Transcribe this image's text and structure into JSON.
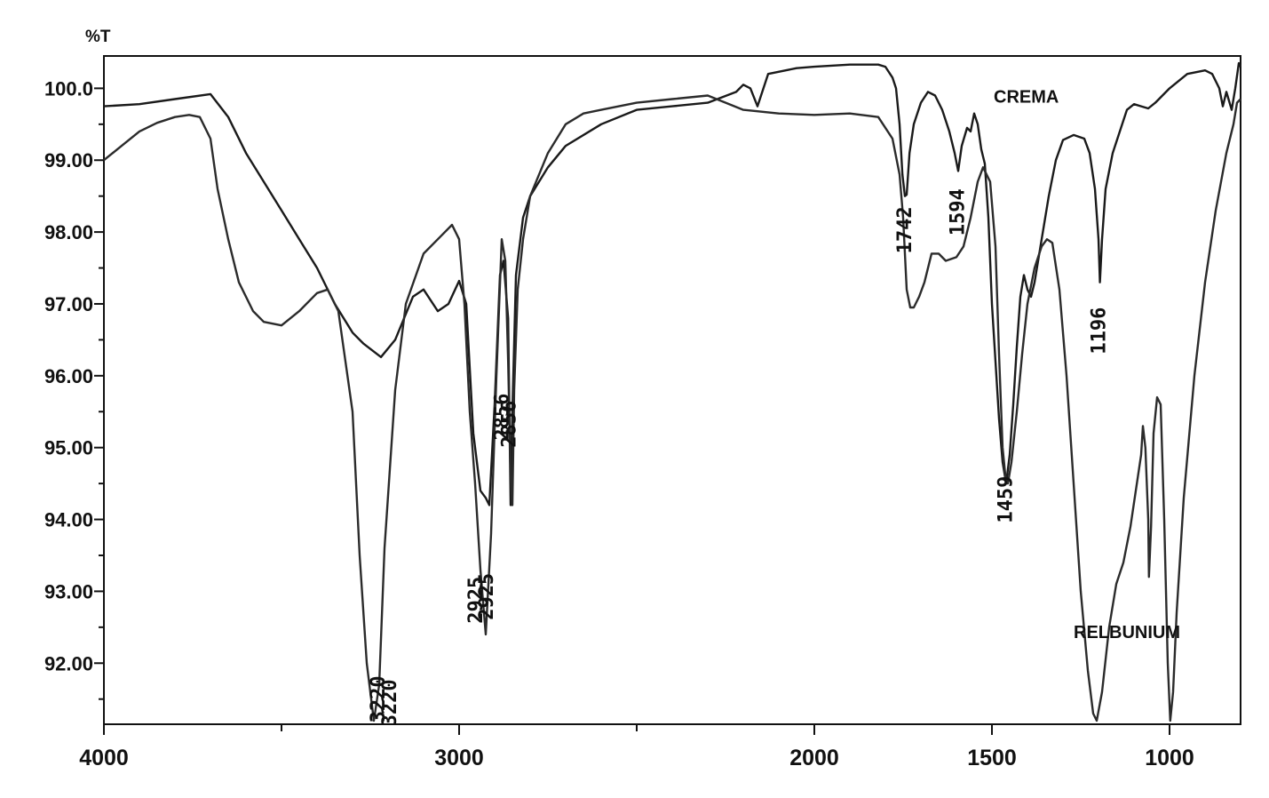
{
  "chart_data": {
    "type": "line",
    "title": "",
    "ylabel": "%T",
    "xlabel": "",
    "xlim": [
      4000,
      800
    ],
    "ylim": [
      91.15,
      100.45
    ],
    "x_ticks": [
      {
        "value": 4000,
        "label": "4000"
      },
      {
        "value": 3000,
        "label": "3000"
      },
      {
        "value": 2000,
        "label": "2000"
      },
      {
        "value": 1500,
        "label": "1500"
      },
      {
        "value": 1000,
        "label": "1000"
      }
    ],
    "x_minor_ticks": [
      3500,
      2500
    ],
    "y_ticks": [
      {
        "value": 100,
        "label": "100.0"
      },
      {
        "value": 99,
        "label": "99.00"
      },
      {
        "value": 98,
        "label": "98.00"
      },
      {
        "value": 97,
        "label": "97.00"
      },
      {
        "value": 96,
        "label": "96.00"
      },
      {
        "value": 95,
        "label": "95.00"
      },
      {
        "value": 94,
        "label": "94.00"
      },
      {
        "value": 93,
        "label": "93.00"
      },
      {
        "value": 92,
        "label": "92.00"
      }
    ],
    "grid": false,
    "series": [
      {
        "name": "CREMA",
        "color": "#1a1a1a",
        "label_at": {
          "x": 1495,
          "y": 99.8
        },
        "points": [
          [
            4000,
            99.75
          ],
          [
            3900,
            99.78
          ],
          [
            3800,
            99.85
          ],
          [
            3700,
            99.92
          ],
          [
            3650,
            99.6
          ],
          [
            3600,
            99.1
          ],
          [
            3550,
            98.7
          ],
          [
            3500,
            98.3
          ],
          [
            3450,
            97.9
          ],
          [
            3400,
            97.5
          ],
          [
            3350,
            97.0
          ],
          [
            3300,
            96.6
          ],
          [
            3270,
            96.45
          ],
          [
            3220,
            96.26
          ],
          [
            3180,
            96.5
          ],
          [
            3130,
            97.1
          ],
          [
            3100,
            97.2
          ],
          [
            3060,
            96.9
          ],
          [
            3030,
            97.0
          ],
          [
            3000,
            97.32
          ],
          [
            2980,
            97.0
          ],
          [
            2960,
            95.2
          ],
          [
            2940,
            94.4
          ],
          [
            2925,
            94.3
          ],
          [
            2915,
            94.2
          ],
          [
            2900,
            95.6
          ],
          [
            2885,
            97.4
          ],
          [
            2875,
            97.6
          ],
          [
            2862,
            96.8
          ],
          [
            2855,
            94.2
          ],
          [
            2850,
            95.5
          ],
          [
            2840,
            97.4
          ],
          [
            2820,
            98.2
          ],
          [
            2800,
            98.5
          ],
          [
            2750,
            98.9
          ],
          [
            2700,
            99.2
          ],
          [
            2600,
            99.5
          ],
          [
            2500,
            99.7
          ],
          [
            2400,
            99.75
          ],
          [
            2300,
            99.8
          ],
          [
            2220,
            99.95
          ],
          [
            2200,
            100.05
          ],
          [
            2180,
            100.0
          ],
          [
            2160,
            99.75
          ],
          [
            2150,
            99.9
          ],
          [
            2130,
            100.2
          ],
          [
            2050,
            100.28
          ],
          [
            2000,
            100.3
          ],
          [
            1900,
            100.33
          ],
          [
            1820,
            100.33
          ],
          [
            1800,
            100.3
          ],
          [
            1780,
            100.15
          ],
          [
            1770,
            100.0
          ],
          [
            1760,
            99.5
          ],
          [
            1752,
            98.8
          ],
          [
            1745,
            98.5
          ],
          [
            1740,
            98.52
          ],
          [
            1732,
            99.1
          ],
          [
            1720,
            99.5
          ],
          [
            1700,
            99.8
          ],
          [
            1680,
            99.95
          ],
          [
            1660,
            99.9
          ],
          [
            1640,
            99.7
          ],
          [
            1620,
            99.4
          ],
          [
            1605,
            99.1
          ],
          [
            1595,
            98.85
          ],
          [
            1585,
            99.2
          ],
          [
            1570,
            99.45
          ],
          [
            1560,
            99.4
          ],
          [
            1550,
            99.65
          ],
          [
            1540,
            99.5
          ],
          [
            1530,
            99.15
          ],
          [
            1520,
            98.95
          ],
          [
            1510,
            98.2
          ],
          [
            1500,
            97.0
          ],
          [
            1490,
            96.2
          ],
          [
            1480,
            95.4
          ],
          [
            1470,
            94.8
          ],
          [
            1460,
            94.5
          ],
          [
            1450,
            94.9
          ],
          [
            1440,
            95.6
          ],
          [
            1430,
            96.4
          ],
          [
            1420,
            97.1
          ],
          [
            1410,
            97.4
          ],
          [
            1400,
            97.2
          ],
          [
            1390,
            97.1
          ],
          [
            1380,
            97.3
          ],
          [
            1360,
            97.9
          ],
          [
            1340,
            98.5
          ],
          [
            1320,
            99.0
          ],
          [
            1300,
            99.28
          ],
          [
            1270,
            99.35
          ],
          [
            1240,
            99.3
          ],
          [
            1225,
            99.1
          ],
          [
            1210,
            98.6
          ],
          [
            1200,
            97.9
          ],
          [
            1196,
            97.3
          ],
          [
            1190,
            97.9
          ],
          [
            1180,
            98.6
          ],
          [
            1160,
            99.1
          ],
          [
            1140,
            99.4
          ],
          [
            1120,
            99.7
          ],
          [
            1100,
            99.78
          ],
          [
            1080,
            99.75
          ],
          [
            1060,
            99.72
          ],
          [
            1040,
            99.8
          ],
          [
            1000,
            100.0
          ],
          [
            950,
            100.2
          ],
          [
            900,
            100.25
          ],
          [
            880,
            100.2
          ],
          [
            860,
            100.0
          ],
          [
            850,
            99.75
          ],
          [
            840,
            99.95
          ],
          [
            825,
            99.7
          ],
          [
            815,
            100.0
          ],
          [
            805,
            100.35
          ],
          [
            800,
            100.3
          ]
        ]
      },
      {
        "name": "RELBUNIUM",
        "color": "#2b2b2b",
        "label_at": {
          "x": 1270,
          "y": 92.35
        },
        "points": [
          [
            4000,
            99.0
          ],
          [
            3950,
            99.2
          ],
          [
            3900,
            99.4
          ],
          [
            3850,
            99.52
          ],
          [
            3800,
            99.6
          ],
          [
            3760,
            99.63
          ],
          [
            3730,
            99.6
          ],
          [
            3700,
            99.3
          ],
          [
            3680,
            98.6
          ],
          [
            3650,
            97.9
          ],
          [
            3620,
            97.3
          ],
          [
            3580,
            96.9
          ],
          [
            3550,
            96.75
          ],
          [
            3500,
            96.7
          ],
          [
            3450,
            96.9
          ],
          [
            3400,
            97.15
          ],
          [
            3370,
            97.2
          ],
          [
            3340,
            96.9
          ],
          [
            3300,
            95.5
          ],
          [
            3280,
            93.5
          ],
          [
            3260,
            92.0
          ],
          [
            3240,
            91.2
          ],
          [
            3225,
            91.7
          ],
          [
            3210,
            93.6
          ],
          [
            3180,
            95.8
          ],
          [
            3150,
            97.0
          ],
          [
            3100,
            97.7
          ],
          [
            3050,
            97.95
          ],
          [
            3020,
            98.1
          ],
          [
            3000,
            97.9
          ],
          [
            2985,
            97.0
          ],
          [
            2970,
            95.5
          ],
          [
            2955,
            94.5
          ],
          [
            2940,
            93.3
          ],
          [
            2925,
            92.4
          ],
          [
            2910,
            93.8
          ],
          [
            2895,
            96.0
          ],
          [
            2880,
            97.9
          ],
          [
            2870,
            97.6
          ],
          [
            2862,
            96.2
          ],
          [
            2855,
            94.6
          ],
          [
            2850,
            94.2
          ],
          [
            2845,
            95.8
          ],
          [
            2835,
            97.2
          ],
          [
            2820,
            97.9
          ],
          [
            2800,
            98.5
          ],
          [
            2750,
            99.1
          ],
          [
            2700,
            99.5
          ],
          [
            2650,
            99.65
          ],
          [
            2600,
            99.7
          ],
          [
            2550,
            99.75
          ],
          [
            2500,
            99.8
          ],
          [
            2400,
            99.85
          ],
          [
            2300,
            99.9
          ],
          [
            2200,
            99.7
          ],
          [
            2100,
            99.65
          ],
          [
            2000,
            99.63
          ],
          [
            1900,
            99.65
          ],
          [
            1820,
            99.6
          ],
          [
            1780,
            99.3
          ],
          [
            1760,
            98.8
          ],
          [
            1750,
            98.2
          ],
          [
            1740,
            97.2
          ],
          [
            1730,
            96.95
          ],
          [
            1720,
            96.95
          ],
          [
            1705,
            97.1
          ],
          [
            1690,
            97.3
          ],
          [
            1670,
            97.7
          ],
          [
            1650,
            97.7
          ],
          [
            1630,
            97.6
          ],
          [
            1600,
            97.65
          ],
          [
            1580,
            97.8
          ],
          [
            1560,
            98.2
          ],
          [
            1540,
            98.7
          ],
          [
            1525,
            98.9
          ],
          [
            1505,
            98.7
          ],
          [
            1490,
            97.8
          ],
          [
            1480,
            96.3
          ],
          [
            1470,
            95.0
          ],
          [
            1460,
            94.5
          ],
          [
            1455,
            94.5
          ],
          [
            1445,
            94.8
          ],
          [
            1430,
            95.5
          ],
          [
            1415,
            96.3
          ],
          [
            1400,
            97.0
          ],
          [
            1380,
            97.5
          ],
          [
            1360,
            97.8
          ],
          [
            1345,
            97.9
          ],
          [
            1330,
            97.85
          ],
          [
            1310,
            97.2
          ],
          [
            1290,
            96.0
          ],
          [
            1270,
            94.5
          ],
          [
            1250,
            93.0
          ],
          [
            1230,
            91.9
          ],
          [
            1215,
            91.3
          ],
          [
            1205,
            91.2
          ],
          [
            1190,
            91.6
          ],
          [
            1170,
            92.5
          ],
          [
            1150,
            93.1
          ],
          [
            1130,
            93.4
          ],
          [
            1110,
            93.9
          ],
          [
            1095,
            94.4
          ],
          [
            1080,
            94.9
          ],
          [
            1075,
            95.3
          ],
          [
            1068,
            95.0
          ],
          [
            1060,
            94.0
          ],
          [
            1058,
            93.2
          ],
          [
            1052,
            93.9
          ],
          [
            1045,
            95.2
          ],
          [
            1035,
            95.7
          ],
          [
            1025,
            95.6
          ],
          [
            1015,
            94.0
          ],
          [
            1005,
            92.0
          ],
          [
            998,
            91.2
          ],
          [
            990,
            91.6
          ],
          [
            980,
            92.7
          ],
          [
            960,
            94.3
          ],
          [
            930,
            96.0
          ],
          [
            900,
            97.3
          ],
          [
            870,
            98.3
          ],
          [
            840,
            99.1
          ],
          [
            820,
            99.5
          ],
          [
            810,
            99.8
          ],
          [
            800,
            99.85
          ]
        ]
      }
    ],
    "peak_labels": [
      {
        "label": "3220",
        "x": 3225,
        "y": 91.17
      },
      {
        "label": "3220",
        "x": 3193,
        "y": 91.12
      },
      {
        "label": "2925",
        "x": 2950,
        "y": 92.55
      },
      {
        "label": "2925",
        "x": 2920,
        "y": 92.6
      },
      {
        "label": "2856",
        "x": 2876,
        "y": 95.1
      },
      {
        "label": "2856",
        "x": 2856,
        "y": 95.0
      },
      {
        "label": "1742",
        "x": 1742,
        "y": 97.7
      },
      {
        "label": "1594",
        "x": 1594,
        "y": 97.95
      },
      {
        "label": "1459",
        "x": 1459,
        "y": 93.95
      },
      {
        "label": "1196",
        "x": 1196,
        "y": 96.3
      }
    ]
  }
}
